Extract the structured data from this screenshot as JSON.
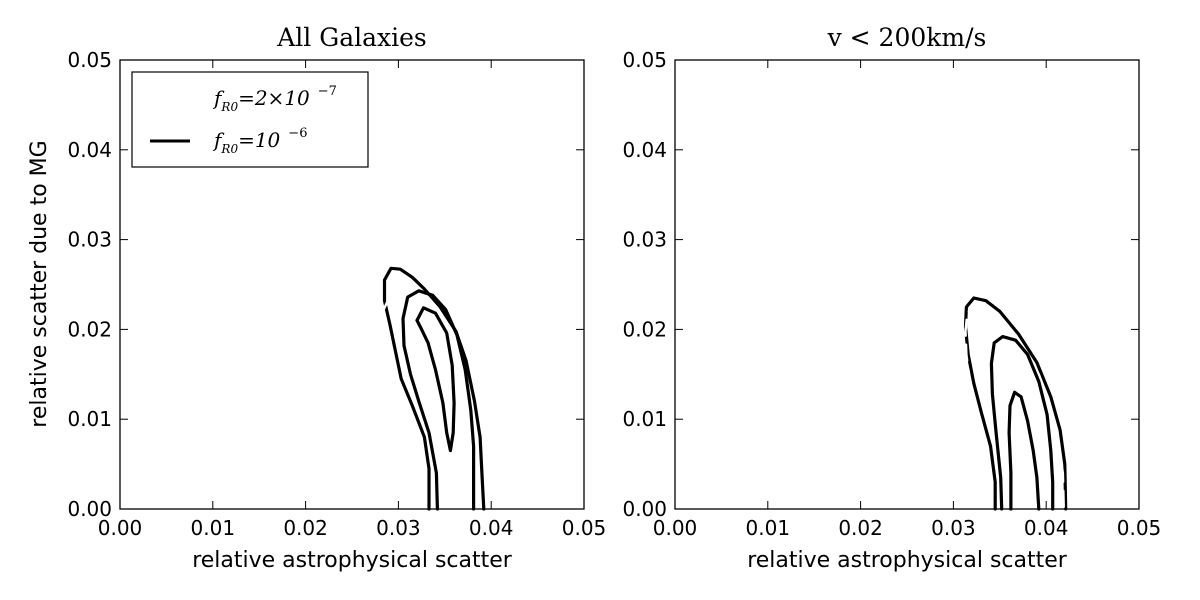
{
  "chart_data": [
    {
      "type": "contour",
      "title": "All Galaxies",
      "xlabel": "relative astrophysical scatter",
      "ylabel": "relative scatter due to MG",
      "xlim": [
        0.0,
        0.05
      ],
      "ylim": [
        0.0,
        0.05
      ],
      "xticks": [
        "0.00",
        "0.01",
        "0.02",
        "0.03",
        "0.04",
        "0.05"
      ],
      "yticks": [
        "0.00",
        "0.01",
        "0.02",
        "0.03",
        "0.04",
        "0.05"
      ],
      "grid": false,
      "legend": {
        "placement": "upper-left",
        "entries": [
          {
            "style": "dashed",
            "prefix": "f",
            "sub": "R0",
            "text": "=2×10",
            "sup": "−7"
          },
          {
            "style": "solid",
            "prefix": "f",
            "sub": "R0",
            "text": "=10",
            "sup": "−6"
          }
        ]
      },
      "series": [
        {
          "style": "solid",
          "level": "outer",
          "points": [
            [
              0.0333,
              0.0
            ],
            [
              0.0333,
              0.0045
            ],
            [
              0.0328,
              0.008
            ],
            [
              0.0315,
              0.0115
            ],
            [
              0.0303,
              0.0145
            ],
            [
              0.0297,
              0.0175
            ],
            [
              0.0291,
              0.0205
            ],
            [
              0.0285,
              0.0232
            ],
            [
              0.0285,
              0.0255
            ],
            [
              0.0292,
              0.0268
            ],
            [
              0.0302,
              0.0267
            ],
            [
              0.0315,
              0.0258
            ],
            [
              0.0328,
              0.0245
            ],
            [
              0.0345,
              0.0225
            ],
            [
              0.0362,
              0.0198
            ],
            [
              0.0373,
              0.0165
            ],
            [
              0.0382,
              0.012
            ],
            [
              0.0388,
              0.008
            ],
            [
              0.039,
              0.004
            ],
            [
              0.0392,
              0.0
            ]
          ]
        },
        {
          "style": "dashed",
          "level": "outer",
          "points": [
            [
              0.0318,
              0.0
            ],
            [
              0.0318,
              0.003
            ],
            [
              0.0312,
              0.0075
            ],
            [
              0.03,
              0.0115
            ],
            [
              0.0292,
              0.0145
            ],
            [
              0.0287,
              0.0175
            ],
            [
              0.0284,
              0.02
            ],
            [
              0.0284,
              0.0222
            ],
            [
              0.029,
              0.0235
            ],
            [
              0.03,
              0.0238
            ],
            [
              0.0314,
              0.023
            ],
            [
              0.033,
              0.0218
            ],
            [
              0.0347,
              0.0198
            ],
            [
              0.0362,
              0.0168
            ],
            [
              0.0372,
              0.013
            ],
            [
              0.0378,
              0.009
            ],
            [
              0.0381,
              0.005
            ],
            [
              0.0383,
              0.0
            ]
          ]
        },
        {
          "style": "solid",
          "level": "middle",
          "points": [
            [
              0.0342,
              0.0
            ],
            [
              0.0341,
              0.004
            ],
            [
              0.0333,
              0.0085
            ],
            [
              0.0322,
              0.012
            ],
            [
              0.0313,
              0.015
            ],
            [
              0.0306,
              0.0182
            ],
            [
              0.0305,
              0.0212
            ],
            [
              0.031,
              0.0236
            ],
            [
              0.0322,
              0.0243
            ],
            [
              0.0337,
              0.0238
            ],
            [
              0.0351,
              0.0222
            ],
            [
              0.0363,
              0.0194
            ],
            [
              0.0372,
              0.0155
            ],
            [
              0.0378,
              0.011
            ],
            [
              0.0381,
              0.007
            ],
            [
              0.0381,
              0.003
            ],
            [
              0.0381,
              0.0
            ]
          ]
        },
        {
          "style": "solid",
          "level": "inner",
          "points": [
            [
              0.032,
              0.021
            ],
            [
              0.0327,
              0.0224
            ],
            [
              0.034,
              0.0218
            ],
            [
              0.0352,
              0.0196
            ],
            [
              0.0358,
              0.016
            ],
            [
              0.036,
              0.0118
            ],
            [
              0.0359,
              0.0085
            ],
            [
              0.0356,
              0.0065
            ],
            [
              0.0352,
              0.0085
            ],
            [
              0.0348,
              0.0118
            ],
            [
              0.034,
              0.0155
            ],
            [
              0.0332,
              0.0185
            ],
            [
              0.0324,
              0.0202
            ],
            [
              0.032,
              0.021
            ]
          ]
        }
      ]
    },
    {
      "type": "contour",
      "title": "v < 200km/s",
      "xlabel": "relative astrophysical scatter",
      "ylabel": "",
      "xlim": [
        0.0,
        0.05
      ],
      "ylim": [
        0.0,
        0.05
      ],
      "xticks": [
        "0.00",
        "0.01",
        "0.02",
        "0.03",
        "0.04",
        "0.05"
      ],
      "yticks": [
        "0.00",
        "0.01",
        "0.02",
        "0.03",
        "0.04",
        "0.05"
      ],
      "grid": false,
      "series": [
        {
          "style": "solid",
          "level": "outer",
          "points": [
            [
              0.0345,
              0.0
            ],
            [
              0.0345,
              0.003
            ],
            [
              0.034,
              0.007
            ],
            [
              0.033,
              0.0108
            ],
            [
              0.0322,
              0.014
            ],
            [
              0.0316,
              0.0172
            ],
            [
              0.0313,
              0.0203
            ],
            [
              0.0314,
              0.0225
            ],
            [
              0.0322,
              0.0235
            ],
            [
              0.0335,
              0.0232
            ],
            [
              0.035,
              0.022
            ],
            [
              0.037,
              0.0195
            ],
            [
              0.039,
              0.0163
            ],
            [
              0.0405,
              0.0125
            ],
            [
              0.0415,
              0.0088
            ],
            [
              0.042,
              0.005
            ],
            [
              0.0421,
              0.0
            ]
          ]
        },
        {
          "style": "dashed",
          "level": "outer",
          "points": [
            [
              0.0335,
              0.0
            ],
            [
              0.0335,
              0.003
            ],
            [
              0.0332,
              0.007
            ],
            [
              0.0325,
              0.0108
            ],
            [
              0.0318,
              0.014
            ],
            [
              0.0314,
              0.0172
            ],
            [
              0.0313,
              0.0198
            ],
            [
              0.0315,
              0.0218
            ],
            [
              0.0322,
              0.0226
            ],
            [
              0.0335,
              0.0224
            ],
            [
              0.0352,
              0.021
            ],
            [
              0.0372,
              0.0185
            ],
            [
              0.0392,
              0.015
            ],
            [
              0.0405,
              0.0112
            ],
            [
              0.0413,
              0.0075
            ],
            [
              0.0418,
              0.004
            ],
            [
              0.0419,
              0.0
            ]
          ]
        },
        {
          "style": "solid",
          "level": "middle",
          "points": [
            [
              0.0352,
              0.0
            ],
            [
              0.0351,
              0.0035
            ],
            [
              0.0346,
              0.0085
            ],
            [
              0.0342,
              0.0128
            ],
            [
              0.0341,
              0.0162
            ],
            [
              0.0344,
              0.0185
            ],
            [
              0.0353,
              0.0192
            ],
            [
              0.0367,
              0.0188
            ],
            [
              0.038,
              0.0172
            ],
            [
              0.0392,
              0.0142
            ],
            [
              0.0401,
              0.0105
            ],
            [
              0.0405,
              0.0065
            ],
            [
              0.0407,
              0.003
            ],
            [
              0.0407,
              0.0
            ]
          ]
        },
        {
          "style": "solid",
          "level": "inner",
          "points": [
            [
              0.0362,
              0.0
            ],
            [
              0.0362,
              0.004
            ],
            [
              0.036,
              0.0085
            ],
            [
              0.0361,
              0.0115
            ],
            [
              0.0366,
              0.013
            ],
            [
              0.0373,
              0.0125
            ],
            [
              0.038,
              0.0098
            ],
            [
              0.0386,
              0.0065
            ],
            [
              0.039,
              0.0035
            ],
            [
              0.0392,
              0.0
            ]
          ]
        }
      ]
    }
  ]
}
